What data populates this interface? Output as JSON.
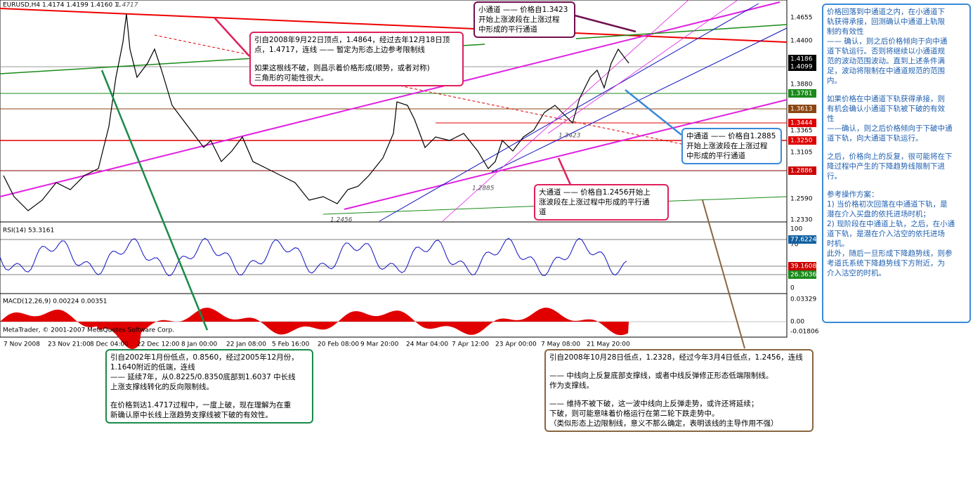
{
  "header": {
    "title": "EURUSD,H4 1.4174 1.4199 1.4160 1."
  },
  "price_axis": [
    "1.4655",
    "1.4400",
    "1.4186",
    "1.4099",
    "1.3880",
    "1.3781",
    "1.3613",
    "1.3444",
    "1.3365",
    "1.3250",
    "1.3105",
    "1.2886",
    "1.2590",
    "1.2330"
  ],
  "chart_labels": [
    "1.4717",
    "1.3423",
    "1.2885",
    "1.2456"
  ],
  "rsi": {
    "title": "RSI(14) 53.3161",
    "axis": [
      "100",
      "70",
      "77.6224",
      "39.1608",
      "26.3636",
      "0"
    ]
  },
  "macd": {
    "title": "MACD(12,26,9) 0.00224 0.00351",
    "axis": [
      "0.03329",
      "0.00",
      "-0.01806"
    ]
  },
  "copyright": "MetaTrader, © 2001-2007 MetaQuotes Software Corp.",
  "x_axis": [
    "7 Nov 2008",
    "23 Nov 21:00",
    "8 Dec 04:00",
    "22 Dec 12:00",
    "8 Jan 00:00",
    "22 Jan 08:00",
    "5 Feb 16:00",
    "20 Feb 08:00",
    "9 Mar 20:00",
    "24 Mar 04:00",
    "7 Apr 12:00",
    "23 Apr 00:00",
    "7 May 08:00",
    "21 May 20:00"
  ],
  "annotations": [
    {
      "paragraphs": [
        [
          "引自2008年9月22日顶点，1.4864，经过去年12月18日顶",
          "点，1.4717，连线 —— 暂定为形态上边参考限制线"
        ],
        [
          "如果这根线不破，则昌示着价格形成(顺势，或者对称)",
          "三角形的可能性很大。"
        ]
      ]
    },
    {
      "paragraphs": [
        [
          "小通道 —— 价格自1.3423",
          "开始上涨波段在上涨过程",
          "中形成的平行通道"
        ]
      ]
    },
    {
      "paragraphs": [
        [
          "中通道 —— 价格自1.2885",
          "开始上涨波段在上涨过程",
          "中形成的平行通道"
        ]
      ]
    },
    {
      "paragraphs": [
        [
          "大通道 —— 价格自1.2456开始上",
          "涨波段在上涨过程中形成的平行通",
          "道"
        ]
      ]
    },
    {
      "paragraphs": [
        [
          "引自2002年1月份低点，0.8560，经过2005年12月份，",
          "1.1640附近的低端，连线",
          "—— 延续7年，从0.8225/0.8350底部到1.6037 中长线",
          "上涨支撑线转化的反向限制线。"
        ],
        [
          "在价格到达1.4717过程中，一度上破，现在理解为在重",
          "新确认原中长线上涨趋势支撑线被下破的有效性。"
        ]
      ]
    },
    {
      "paragraphs": [
        [
          "引自2008年10月28日低点，1.2328，经过今年3月4日低点，1.2456，连线"
        ],
        [
          "—— 中线向上反复底部支撑线，或者中线反弹修正形态低端限制线。",
          "作为支撑线。"
        ],
        [
          "—— 维持不被下破，这一波中线向上反弹走势，或许还将延续；",
          "下破，则可能意味着价格运行在第二轮下跌走势中。",
          "（类似形态上边限制线，意义不那么确定，表明该线的主导作用不强）"
        ]
      ]
    },
    {
      "paragraphs": [
        [
          "价格回落到中通道之内，在小通道下",
          "轨获得承接，回测确认中通道上轨限",
          "制的有效性",
          "—— 确认，则之后价格倾向于向中通",
          "道下轨运行。否则将继续以小通道规",
          "范的波动范围波动。直到上述条件满",
          "足，波动将限制在中通道规范的范围",
          "内。"
        ],
        [
          "如果价格在中通道下轨获得承接，则",
          "有机会确认小通道下轨被下破的有效",
          "性",
          "——确认，则之后价格倾向于下破中通",
          "道下轨，向大通道下轨运行。"
        ],
        [
          "之后，价格向上的反复，很可能将在下",
          "降过程中产生的下降趋势线限制下进",
          "行。"
        ],
        [
          "参考操作方案：",
          "1) 当价格初次回落在中通道下轨，是",
          "潜在介入买盘的依托进场时机；",
          "2) 现阶段在中通道上轨，之后，在小通",
          "道下轨，是潜在介入沽空的依托进场",
          "时机。",
          "此外，随后一旦形成下降趋势线，则参",
          "考道氏系统下降趋势线下方附近，为",
          "介入沽空的时机。"
        ]
      ]
    }
  ]
}
